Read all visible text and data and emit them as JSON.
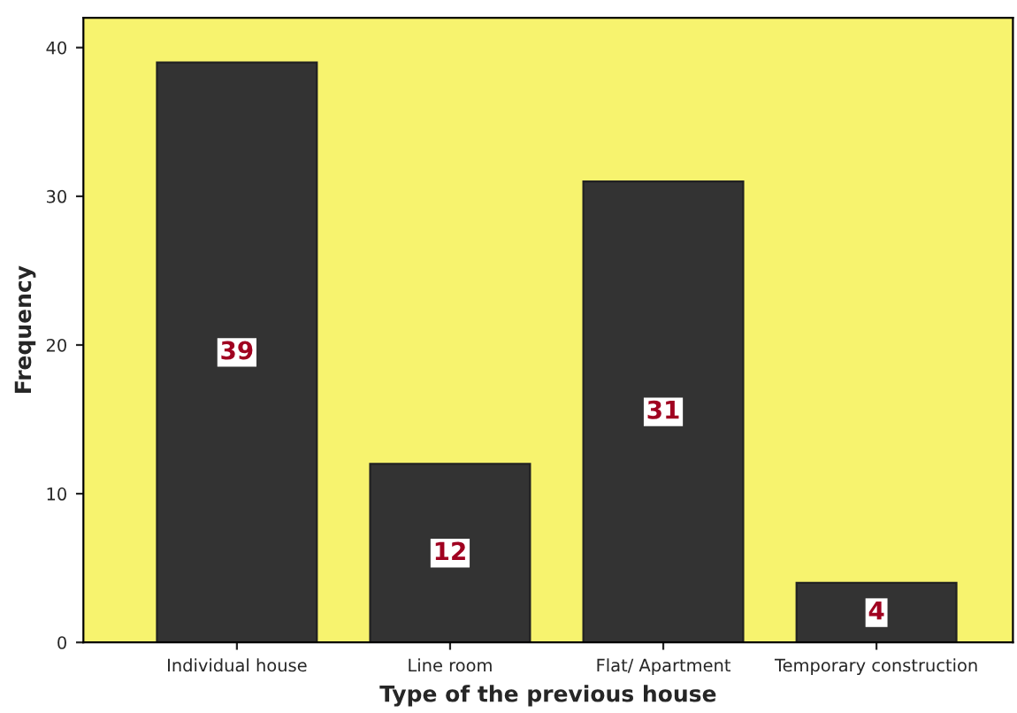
{
  "chart_data": {
    "type": "bar",
    "xlabel": "Type of the previous house",
    "ylabel": "Frequency",
    "categories": [
      "Individual house",
      "Line room",
      "Flat/ Apartment",
      "Temporary construction"
    ],
    "values": [
      39,
      12,
      31,
      4
    ],
    "color": "#333333",
    "ylim": [
      0,
      42
    ],
    "yticks": [
      0,
      10,
      20,
      30,
      40
    ],
    "grid": false,
    "data_labels": true
  }
}
